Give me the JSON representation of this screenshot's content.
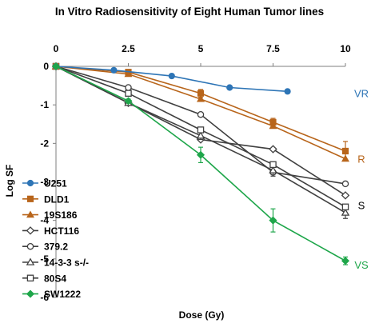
{
  "chart_data": {
    "type": "line",
    "title": "In Vitro Radiosensitivity of Eight Human Tumor lines",
    "xlabel": "Dose (Gy)",
    "ylabel": "Log SF",
    "xlim": [
      0,
      10
    ],
    "ylim": [
      -6,
      0
    ],
    "x_axis_position": "top",
    "x_ticks": [
      0,
      2.5,
      5,
      7.5,
      10
    ],
    "x_tick_labels": [
      "0",
      "2.5",
      "5",
      "7.5",
      "10"
    ],
    "y_ticks": [
      0,
      -1,
      -2,
      -3,
      -4,
      -5,
      -6
    ],
    "y_tick_labels": [
      "0",
      "-1",
      "-2",
      "-3",
      "-4",
      "-5",
      "-6"
    ],
    "grid": false,
    "legend_position": "bottom-left",
    "series": [
      {
        "name": "U251",
        "color": "#2E75B6",
        "marker": "circle-filled",
        "x": [
          0,
          2,
          4,
          6,
          8
        ],
        "y": [
          0,
          -0.1,
          -0.25,
          -0.55,
          -0.65
        ]
      },
      {
        "name": "DLD1",
        "color": "#B8651B",
        "marker": "square-filled",
        "x": [
          0,
          2.5,
          5,
          7.5,
          10
        ],
        "y": [
          0,
          -0.15,
          -0.7,
          -1.45,
          -2.2
        ],
        "err": [
          0,
          0.05,
          0.1,
          0.1,
          0.25
        ]
      },
      {
        "name": "19S186",
        "color": "#B8651B",
        "marker": "triangle-filled",
        "x": [
          0,
          2.5,
          5,
          7.5,
          10
        ],
        "y": [
          0,
          -0.2,
          -0.85,
          -1.55,
          -2.4
        ]
      },
      {
        "name": "HCT116",
        "color": "#404040",
        "marker": "diamond-open",
        "x": [
          0,
          2.5,
          5,
          7.5,
          10
        ],
        "y": [
          0,
          -0.95,
          -1.9,
          -2.15,
          -3.35
        ]
      },
      {
        "name": "379.2",
        "color": "#404040",
        "marker": "circle-open",
        "x": [
          0,
          2.5,
          5,
          7.5,
          10
        ],
        "y": [
          0,
          -0.55,
          -1.25,
          -2.75,
          -3.05
        ]
      },
      {
        "name": "14-3-3 s-/-",
        "color": "#404040",
        "marker": "triangle-open",
        "x": [
          0,
          2.5,
          5,
          7.5,
          10
        ],
        "y": [
          0,
          -0.95,
          -1.8,
          -2.7,
          -3.8
        ],
        "err": [
          0,
          0.05,
          0.1,
          0.15,
          0.15
        ]
      },
      {
        "name": "80S4",
        "color": "#404040",
        "marker": "square-open",
        "x": [
          0,
          2.5,
          5,
          7.5,
          10
        ],
        "y": [
          0,
          -0.7,
          -1.65,
          -2.55,
          -3.65
        ]
      },
      {
        "name": "SW1222",
        "color": "#1EA64A",
        "marker": "diamond-filled",
        "x": [
          0,
          2.5,
          5,
          7.5,
          10
        ],
        "y": [
          0,
          -0.9,
          -2.3,
          -4.0,
          -5.05
        ],
        "err": [
          0,
          0.05,
          0.2,
          0.3,
          0.1
        ]
      }
    ],
    "annotations": [
      {
        "text": "VR",
        "color": "#2E75B6",
        "y": -0.7
      },
      {
        "text": "R",
        "color": "#B8651B",
        "y": -2.4
      },
      {
        "text": "S",
        "color": "#000000",
        "y": -3.6
      },
      {
        "text": "VS",
        "color": "#1EA64A",
        "y": -5.15
      }
    ]
  }
}
